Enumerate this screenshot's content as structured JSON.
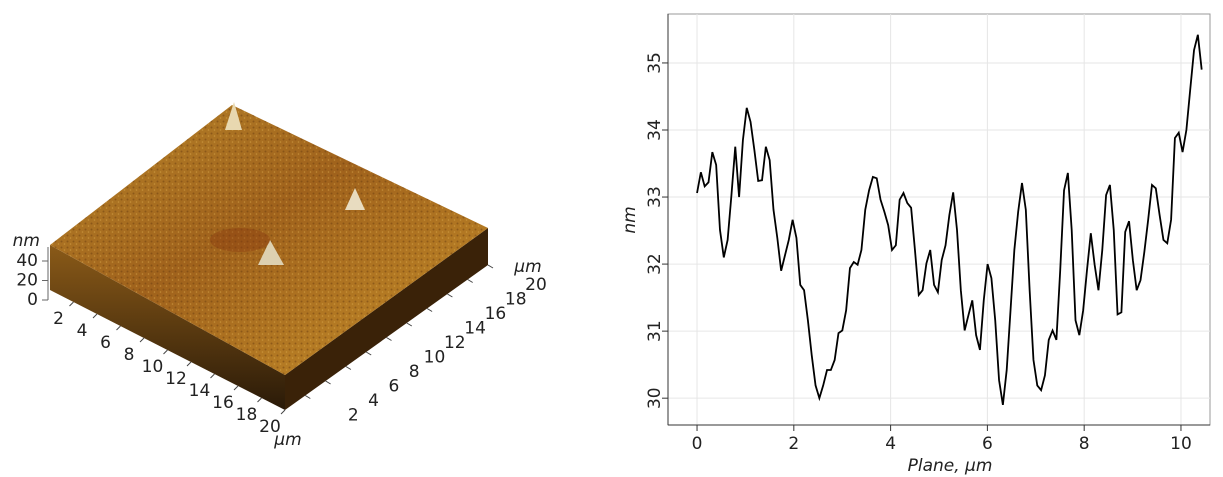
{
  "chart_data": [
    {
      "type": "surface3d",
      "xticks": [
        2,
        4,
        6,
        8,
        10,
        12,
        14,
        16,
        18,
        20
      ],
      "xlim": [
        0,
        20
      ],
      "xlabel": "µm",
      "yticks": [
        2,
        4,
        6,
        8,
        10,
        12,
        14,
        16,
        18,
        20
      ],
      "ylim": [
        0,
        20
      ],
      "ylabel": "µm",
      "zticks": [
        0,
        20,
        40
      ],
      "zlim": [
        0,
        40
      ],
      "zlabel": "nm"
    },
    {
      "type": "line",
      "xlabel": "Plane, µm",
      "ylabel": "nm",
      "xlim": [
        -0.6,
        10.6
      ],
      "ylim": [
        29.6,
        35.73
      ],
      "xticks": [
        0,
        2,
        4,
        6,
        8,
        10
      ],
      "yticks": [
        30,
        31,
        32,
        33,
        34,
        35
      ],
      "grid": true,
      "x": [
        0,
        0.079,
        0.158,
        0.237,
        0.316,
        0.395,
        0.474,
        0.553,
        0.632,
        0.711,
        0.79,
        0.869,
        0.948,
        1.027,
        1.106,
        1.185,
        1.264,
        1.343,
        1.422,
        1.501,
        1.58,
        1.659,
        1.738,
        1.817,
        1.896,
        1.975,
        2.054,
        2.133,
        2.212,
        2.291,
        2.37,
        2.449,
        2.528,
        2.607,
        2.686,
        2.765,
        2.844,
        2.923,
        3.002,
        3.081,
        3.16,
        3.239,
        3.318,
        3.397,
        3.476,
        3.555,
        3.634,
        3.713,
        3.792,
        3.871,
        3.95,
        4.029,
        4.108,
        4.187,
        4.266,
        4.345,
        4.424,
        4.503,
        4.582,
        4.661,
        4.74,
        4.819,
        4.898,
        4.977,
        5.056,
        5.135,
        5.214,
        5.293,
        5.372,
        5.451,
        5.53,
        5.609,
        5.688,
        5.767,
        5.846,
        5.925,
        6.004,
        6.083,
        6.162,
        6.241,
        6.32,
        6.399,
        6.478,
        6.557,
        6.636,
        6.715,
        6.794,
        6.873,
        6.952,
        7.031,
        7.11,
        7.189,
        7.268,
        7.347,
        7.426,
        7.505,
        7.584,
        7.663,
        7.742,
        7.821,
        7.9,
        7.979,
        8.058,
        8.137,
        8.216,
        8.295,
        8.374,
        8.453,
        8.532,
        8.611,
        8.69,
        8.769,
        8.848,
        8.927,
        9.006,
        9.085,
        9.164,
        9.243,
        9.322,
        9.401,
        9.48,
        9.559,
        9.638,
        9.717,
        9.796,
        9.875,
        9.954,
        10.033,
        10.112,
        10.191,
        10.27,
        10.349,
        10.428
      ],
      "series": [
        {
          "color": "#000000",
          "values": [
            33.06,
            33.37,
            33.16,
            33.22,
            33.67,
            33.48,
            32.51,
            32.1,
            32.36,
            33.03,
            33.75,
            33.0,
            33.85,
            34.33,
            34.12,
            33.7,
            33.24,
            33.25,
            33.75,
            33.55,
            32.81,
            32.39,
            31.9,
            32.13,
            32.36,
            32.66,
            32.39,
            31.69,
            31.61,
            31.16,
            30.64,
            30.19,
            30.0,
            30.19,
            30.42,
            30.42,
            30.57,
            30.97,
            31.01,
            31.31,
            31.94,
            32.03,
            31.99,
            32.21,
            32.81,
            33.1,
            33.3,
            33.28,
            32.96,
            32.78,
            32.58,
            32.21,
            32.28,
            32.96,
            33.06,
            32.91,
            32.84,
            32.21,
            31.54,
            31.61,
            32.01,
            32.21,
            31.69,
            31.58,
            32.06,
            32.28,
            32.73,
            33.07,
            32.51,
            31.61,
            31.01,
            31.24,
            31.46,
            30.94,
            30.72,
            31.46,
            32.0,
            31.79,
            31.16,
            30.27,
            29.9,
            30.42,
            31.31,
            32.21,
            32.78,
            33.21,
            32.81,
            31.61,
            30.57,
            30.19,
            30.12,
            30.34,
            30.87,
            31.01,
            30.87,
            31.91,
            33.1,
            33.36,
            32.51,
            31.16,
            30.94,
            31.31,
            31.91,
            32.46,
            31.99,
            31.61,
            32.21,
            33.03,
            33.18,
            32.51,
            31.25,
            31.28,
            32.48,
            32.64,
            32.06,
            31.61,
            31.76,
            32.18,
            32.66,
            33.18,
            33.13,
            32.73,
            32.36,
            32.31,
            32.66,
            33.88,
            33.96,
            33.67,
            34.0,
            34.6,
            35.19,
            35.42,
            34.9
          ]
        }
      ]
    }
  ]
}
